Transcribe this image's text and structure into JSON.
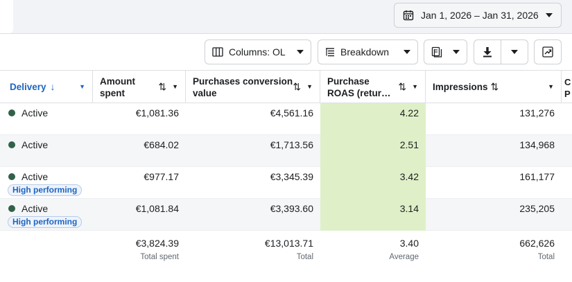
{
  "date_range": {
    "label": "Jan 1, 2026 – Jan 31, 2026"
  },
  "toolbar": {
    "columns_label": "Columns: OL",
    "breakdown_label": "Breakdown"
  },
  "columns": [
    {
      "label": "Delivery",
      "sort_icon": "arrow-down-icon"
    },
    {
      "label": "Amount spent",
      "sort_icon": "sort-arrows-icon"
    },
    {
      "label": "Purchases conversion value",
      "sort_icon": "sort-arrows-icon"
    },
    {
      "label": "Purchase ROAS (retur…",
      "sort_icon": "sort-arrows-icon"
    },
    {
      "label": "Impressions",
      "sort_icon": "sort-arrows-icon"
    }
  ],
  "edge_column_partial": "C\nP",
  "rows": [
    {
      "status": "Active",
      "badge": "",
      "amount_spent": "€1,081.36",
      "conversion_value": "€4,561.16",
      "roas": "4.22",
      "impressions": "131,276"
    },
    {
      "status": "Active",
      "badge": "",
      "amount_spent": "€684.02",
      "conversion_value": "€1,713.56",
      "roas": "2.51",
      "impressions": "134,968"
    },
    {
      "status": "Active",
      "badge": "High performing",
      "amount_spent": "€977.17",
      "conversion_value": "€3,345.39",
      "roas": "3.42",
      "impressions": "161,177"
    },
    {
      "status": "Active",
      "badge": "High performing",
      "amount_spent": "€1,081.84",
      "conversion_value": "€3,393.60",
      "roas": "3.14",
      "impressions": "235,205"
    }
  ],
  "totals": {
    "amount_spent": {
      "value": "€3,824.39",
      "label": "Total spent"
    },
    "conversion_value": {
      "value": "€13,013.71",
      "label": "Total"
    },
    "roas": {
      "value": "3.40",
      "label": "Average"
    },
    "impressions": {
      "value": "662,626",
      "label": "Total"
    }
  },
  "colors": {
    "active_dot": "#31614a",
    "roas_highlight": "#dff0c8",
    "accent_blue": "#1d65c1"
  }
}
